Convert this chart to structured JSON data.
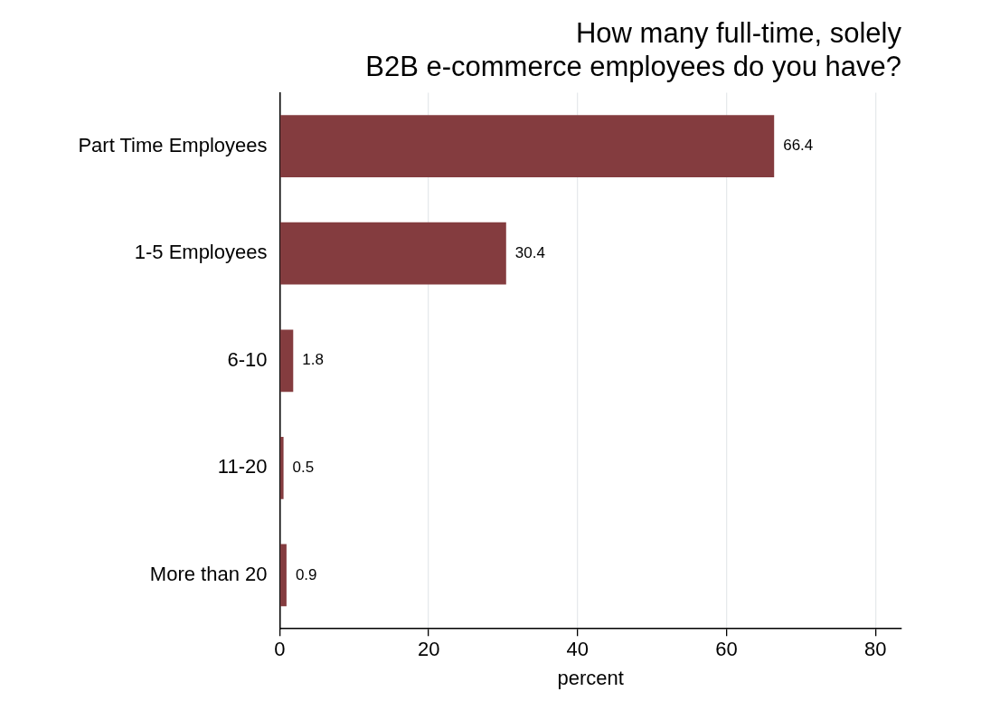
{
  "chart_data": {
    "type": "bar",
    "orientation": "horizontal",
    "title": [
      "How many full-time, solely",
      "B2B e-commerce employees do you have?"
    ],
    "xlabel": "percent",
    "categories": [
      "Part Time Employees",
      "1-5 Employees",
      "6-10",
      "11-20",
      "More than 20"
    ],
    "values": [
      66.4,
      30.4,
      1.8,
      0.5,
      0.9
    ],
    "color": "#843c3f",
    "xlim": [
      0,
      83.5
    ],
    "xticks": [
      0,
      20,
      40,
      60,
      80
    ],
    "grid": "x",
    "data_labels": true,
    "legend": false
  }
}
